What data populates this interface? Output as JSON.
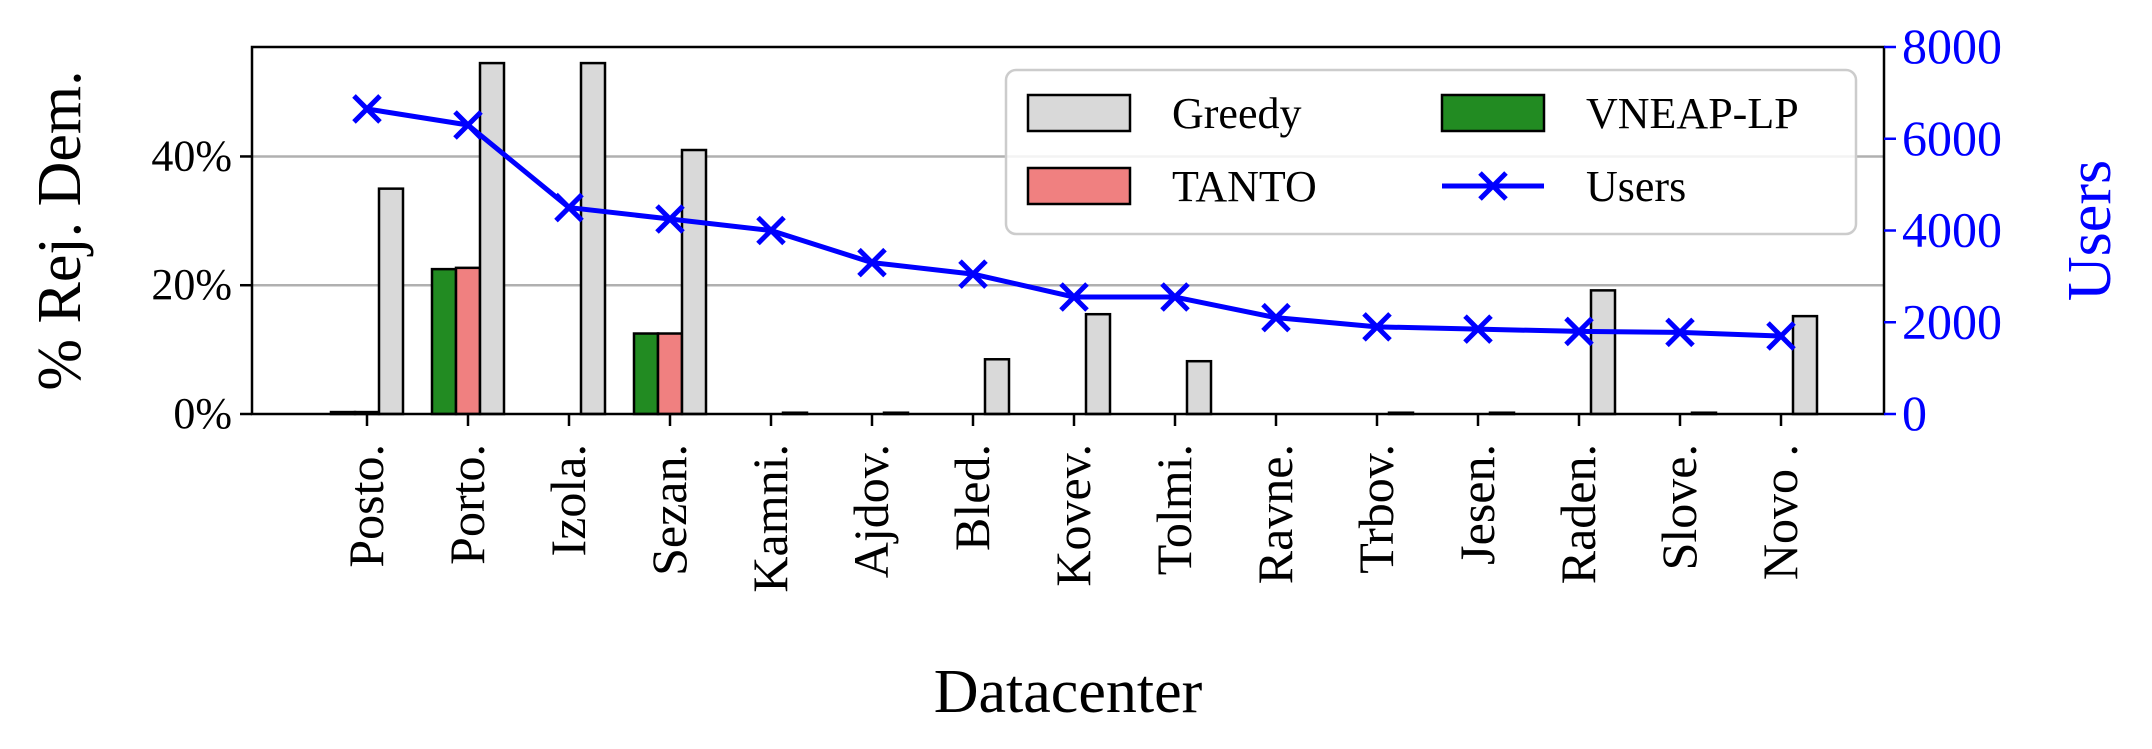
{
  "chart_data": {
    "type": "bar",
    "xlabel": "Datacenter",
    "ylabel": "% Rej. Dem.",
    "y2label": "Users",
    "categories": [
      "Posto.",
      "Porto.",
      "Izola.",
      "Sezan.",
      "Kamni.",
      "Ajdov.",
      "Bled.",
      "Kovev.",
      "Tolmi.",
      "Ravne.",
      "Trbov.",
      "Jesen.",
      "Raden.",
      "Slove.",
      "Novo ."
    ],
    "ylim": [
      0,
      57
    ],
    "y2lim": [
      0,
      8000
    ],
    "y_ticks": [
      {
        "value": 0,
        "label": "0%"
      },
      {
        "value": 20,
        "label": "20%"
      },
      {
        "value": 40,
        "label": "40%"
      }
    ],
    "y2_ticks": [
      {
        "value": 0,
        "label": "0"
      },
      {
        "value": 2000,
        "label": "2000"
      },
      {
        "value": 4000,
        "label": "4000"
      },
      {
        "value": 6000,
        "label": "6000"
      },
      {
        "value": 8000,
        "label": "8000"
      }
    ],
    "grid": "horizontal at y ticks",
    "legend_position": "top-right",
    "bar_series": [
      {
        "name": "VNEAP-LP",
        "color": "#228b22",
        "values": [
          0.3,
          22.5,
          0,
          12.5,
          0,
          0,
          0,
          0,
          0,
          0,
          0,
          0,
          0,
          0,
          0
        ]
      },
      {
        "name": "TANTO",
        "color": "#f08080",
        "values": [
          0.3,
          22.7,
          0,
          12.5,
          0,
          0,
          0,
          0,
          0,
          0,
          0,
          0,
          0,
          0,
          0
        ]
      },
      {
        "name": "Greedy",
        "color": "#d9d9d9",
        "values": [
          35,
          54.5,
          54.5,
          41,
          0.2,
          0.2,
          8.5,
          15.5,
          8.2,
          0,
          0.2,
          0.2,
          19.2,
          0.2,
          15.2
        ]
      }
    ],
    "line_series": {
      "name": "Users",
      "color": "#0000ff",
      "axis": "right",
      "values": [
        6650,
        6300,
        4500,
        4250,
        4000,
        3300,
        3050,
        2550,
        2550,
        2100,
        1900,
        1850,
        1800,
        1780,
        1700
      ]
    },
    "legend_order": [
      "Greedy",
      "VNEAP-LP",
      "TANTO",
      "Users"
    ]
  }
}
